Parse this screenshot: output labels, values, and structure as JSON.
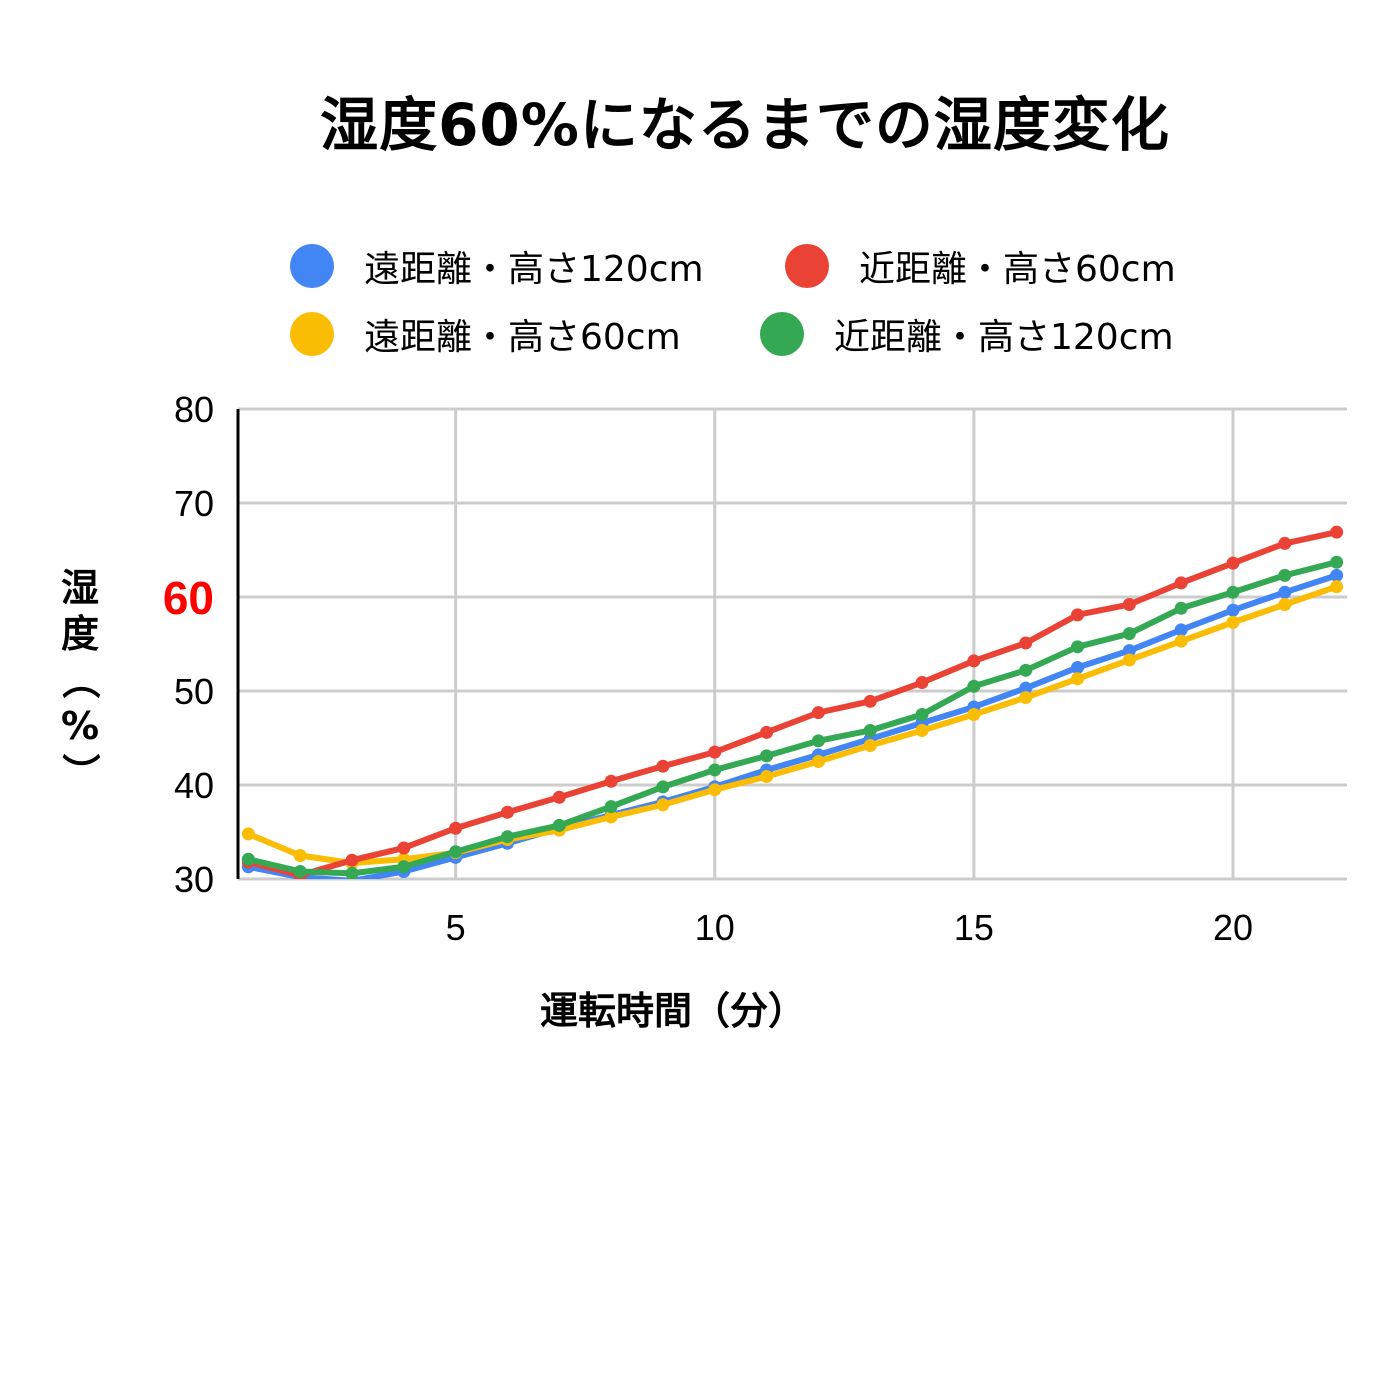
{
  "chart_data": {
    "type": "line",
    "title": "湿度60%になるまでの湿度変化",
    "xlabel": "運転時間（分）",
    "ylabel": "湿度（%）",
    "ylabel_chars": [
      "湿",
      "度",
      "（",
      "%",
      "）"
    ],
    "xlim": [
      0.8,
      22.2
    ],
    "ylim": [
      30,
      80
    ],
    "x_ticks": [
      5,
      10,
      15,
      20
    ],
    "y_ticks": [
      30,
      40,
      50,
      70,
      80
    ],
    "y_highlight_tick": {
      "value": 60,
      "label": "60",
      "color": "#ff0000"
    },
    "grid": true,
    "legend_position": "top",
    "x": [
      1,
      2,
      3,
      4,
      5,
      6,
      7,
      8,
      9,
      10,
      11,
      12,
      13,
      14,
      15,
      16,
      17,
      18,
      19,
      20,
      21,
      22
    ],
    "series": [
      {
        "name": "遠距離・高さ120cm",
        "color": "#4285f4",
        "values": [
          31.3,
          30.2,
          29.8,
          30.8,
          32.3,
          33.8,
          35.4,
          36.8,
          38.2,
          39.8,
          41.6,
          43.2,
          44.9,
          46.6,
          48.3,
          50.3,
          52.5,
          54.3,
          56.5,
          58.6,
          60.5,
          62.3
        ]
      },
      {
        "name": "近距離・高さ60cm",
        "color": "#ea4335",
        "values": [
          31.8,
          30.4,
          32.0,
          33.3,
          35.4,
          37.1,
          38.7,
          40.4,
          42.0,
          43.5,
          45.6,
          47.7,
          48.9,
          50.9,
          53.2,
          55.1,
          58.1,
          59.2,
          61.5,
          63.6,
          65.7,
          66.9
        ]
      },
      {
        "name": "遠距離・高さ60cm",
        "color": "#fbbc04",
        "values": [
          34.8,
          32.5,
          31.7,
          32.1,
          32.8,
          34.2,
          35.2,
          36.6,
          37.9,
          39.5,
          40.9,
          42.5,
          44.2,
          45.8,
          47.5,
          49.3,
          51.3,
          53.3,
          55.3,
          57.3,
          59.2,
          61.1
        ]
      },
      {
        "name": "近距離・高さ120cm",
        "color": "#34a853",
        "values": [
          32.1,
          30.8,
          30.6,
          31.3,
          32.9,
          34.5,
          35.7,
          37.7,
          39.8,
          41.6,
          43.1,
          44.7,
          45.8,
          47.5,
          50.5,
          52.2,
          54.7,
          56.1,
          58.8,
          60.5,
          62.3,
          63.7
        ]
      }
    ]
  }
}
